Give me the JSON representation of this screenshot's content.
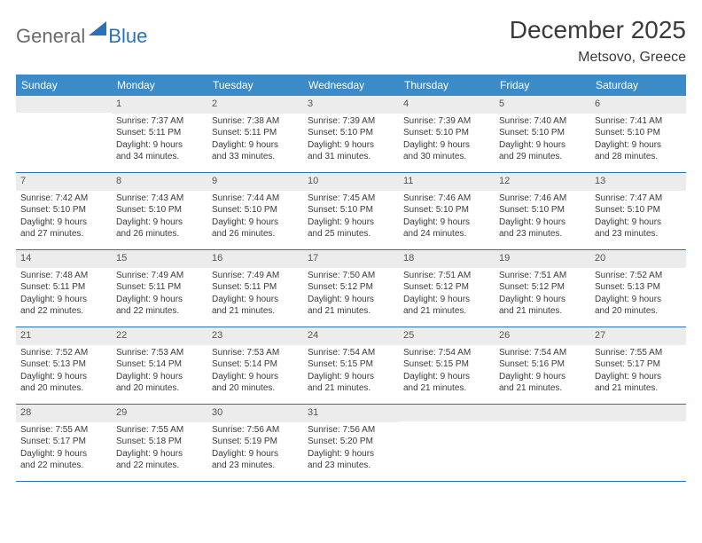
{
  "logo": {
    "word1": "General",
    "word2": "Blue",
    "accent_color": "#2a72b5",
    "grey_color": "#6a6a6a"
  },
  "title": "December 2025",
  "location": "Metsovo, Greece",
  "colors": {
    "header_bg": "#3b8bc9",
    "header_text": "#ffffff",
    "daynum_bg": "#ececec",
    "daynum_text": "#555555",
    "body_text": "#3a3a3a",
    "rule": "#2a72b5",
    "page_bg": "#ffffff"
  },
  "day_headers": [
    "Sunday",
    "Monday",
    "Tuesday",
    "Wednesday",
    "Thursday",
    "Friday",
    "Saturday"
  ],
  "weeks": [
    [
      null,
      {
        "n": "1",
        "sr": "Sunrise: 7:37 AM",
        "ss": "Sunset: 5:11 PM",
        "d1": "Daylight: 9 hours",
        "d2": "and 34 minutes."
      },
      {
        "n": "2",
        "sr": "Sunrise: 7:38 AM",
        "ss": "Sunset: 5:11 PM",
        "d1": "Daylight: 9 hours",
        "d2": "and 33 minutes."
      },
      {
        "n": "3",
        "sr": "Sunrise: 7:39 AM",
        "ss": "Sunset: 5:10 PM",
        "d1": "Daylight: 9 hours",
        "d2": "and 31 minutes."
      },
      {
        "n": "4",
        "sr": "Sunrise: 7:39 AM",
        "ss": "Sunset: 5:10 PM",
        "d1": "Daylight: 9 hours",
        "d2": "and 30 minutes."
      },
      {
        "n": "5",
        "sr": "Sunrise: 7:40 AM",
        "ss": "Sunset: 5:10 PM",
        "d1": "Daylight: 9 hours",
        "d2": "and 29 minutes."
      },
      {
        "n": "6",
        "sr": "Sunrise: 7:41 AM",
        "ss": "Sunset: 5:10 PM",
        "d1": "Daylight: 9 hours",
        "d2": "and 28 minutes."
      }
    ],
    [
      {
        "n": "7",
        "sr": "Sunrise: 7:42 AM",
        "ss": "Sunset: 5:10 PM",
        "d1": "Daylight: 9 hours",
        "d2": "and 27 minutes."
      },
      {
        "n": "8",
        "sr": "Sunrise: 7:43 AM",
        "ss": "Sunset: 5:10 PM",
        "d1": "Daylight: 9 hours",
        "d2": "and 26 minutes."
      },
      {
        "n": "9",
        "sr": "Sunrise: 7:44 AM",
        "ss": "Sunset: 5:10 PM",
        "d1": "Daylight: 9 hours",
        "d2": "and 26 minutes."
      },
      {
        "n": "10",
        "sr": "Sunrise: 7:45 AM",
        "ss": "Sunset: 5:10 PM",
        "d1": "Daylight: 9 hours",
        "d2": "and 25 minutes."
      },
      {
        "n": "11",
        "sr": "Sunrise: 7:46 AM",
        "ss": "Sunset: 5:10 PM",
        "d1": "Daylight: 9 hours",
        "d2": "and 24 minutes."
      },
      {
        "n": "12",
        "sr": "Sunrise: 7:46 AM",
        "ss": "Sunset: 5:10 PM",
        "d1": "Daylight: 9 hours",
        "d2": "and 23 minutes."
      },
      {
        "n": "13",
        "sr": "Sunrise: 7:47 AM",
        "ss": "Sunset: 5:10 PM",
        "d1": "Daylight: 9 hours",
        "d2": "and 23 minutes."
      }
    ],
    [
      {
        "n": "14",
        "sr": "Sunrise: 7:48 AM",
        "ss": "Sunset: 5:11 PM",
        "d1": "Daylight: 9 hours",
        "d2": "and 22 minutes."
      },
      {
        "n": "15",
        "sr": "Sunrise: 7:49 AM",
        "ss": "Sunset: 5:11 PM",
        "d1": "Daylight: 9 hours",
        "d2": "and 22 minutes."
      },
      {
        "n": "16",
        "sr": "Sunrise: 7:49 AM",
        "ss": "Sunset: 5:11 PM",
        "d1": "Daylight: 9 hours",
        "d2": "and 21 minutes."
      },
      {
        "n": "17",
        "sr": "Sunrise: 7:50 AM",
        "ss": "Sunset: 5:12 PM",
        "d1": "Daylight: 9 hours",
        "d2": "and 21 minutes."
      },
      {
        "n": "18",
        "sr": "Sunrise: 7:51 AM",
        "ss": "Sunset: 5:12 PM",
        "d1": "Daylight: 9 hours",
        "d2": "and 21 minutes."
      },
      {
        "n": "19",
        "sr": "Sunrise: 7:51 AM",
        "ss": "Sunset: 5:12 PM",
        "d1": "Daylight: 9 hours",
        "d2": "and 21 minutes."
      },
      {
        "n": "20",
        "sr": "Sunrise: 7:52 AM",
        "ss": "Sunset: 5:13 PM",
        "d1": "Daylight: 9 hours",
        "d2": "and 20 minutes."
      }
    ],
    [
      {
        "n": "21",
        "sr": "Sunrise: 7:52 AM",
        "ss": "Sunset: 5:13 PM",
        "d1": "Daylight: 9 hours",
        "d2": "and 20 minutes."
      },
      {
        "n": "22",
        "sr": "Sunrise: 7:53 AM",
        "ss": "Sunset: 5:14 PM",
        "d1": "Daylight: 9 hours",
        "d2": "and 20 minutes."
      },
      {
        "n": "23",
        "sr": "Sunrise: 7:53 AM",
        "ss": "Sunset: 5:14 PM",
        "d1": "Daylight: 9 hours",
        "d2": "and 20 minutes."
      },
      {
        "n": "24",
        "sr": "Sunrise: 7:54 AM",
        "ss": "Sunset: 5:15 PM",
        "d1": "Daylight: 9 hours",
        "d2": "and 21 minutes."
      },
      {
        "n": "25",
        "sr": "Sunrise: 7:54 AM",
        "ss": "Sunset: 5:15 PM",
        "d1": "Daylight: 9 hours",
        "d2": "and 21 minutes."
      },
      {
        "n": "26",
        "sr": "Sunrise: 7:54 AM",
        "ss": "Sunset: 5:16 PM",
        "d1": "Daylight: 9 hours",
        "d2": "and 21 minutes."
      },
      {
        "n": "27",
        "sr": "Sunrise: 7:55 AM",
        "ss": "Sunset: 5:17 PM",
        "d1": "Daylight: 9 hours",
        "d2": "and 21 minutes."
      }
    ],
    [
      {
        "n": "28",
        "sr": "Sunrise: 7:55 AM",
        "ss": "Sunset: 5:17 PM",
        "d1": "Daylight: 9 hours",
        "d2": "and 22 minutes."
      },
      {
        "n": "29",
        "sr": "Sunrise: 7:55 AM",
        "ss": "Sunset: 5:18 PM",
        "d1": "Daylight: 9 hours",
        "d2": "and 22 minutes."
      },
      {
        "n": "30",
        "sr": "Sunrise: 7:56 AM",
        "ss": "Sunset: 5:19 PM",
        "d1": "Daylight: 9 hours",
        "d2": "and 23 minutes."
      },
      {
        "n": "31",
        "sr": "Sunrise: 7:56 AM",
        "ss": "Sunset: 5:20 PM",
        "d1": "Daylight: 9 hours",
        "d2": "and 23 minutes."
      },
      null,
      null,
      null
    ]
  ]
}
